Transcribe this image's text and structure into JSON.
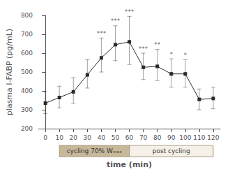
{
  "chart_data": {
    "type": "line",
    "xlabel": "time (min)",
    "ylabel": "plasma I-FABP (pg/mL)",
    "x": [
      0,
      10,
      20,
      30,
      40,
      50,
      60,
      70,
      80,
      90,
      100,
      110,
      120
    ],
    "values": [
      335,
      365,
      395,
      485,
      575,
      645,
      660,
      525,
      530,
      490,
      490,
      355,
      360
    ],
    "yerr_low": [
      55,
      55,
      60,
      70,
      75,
      85,
      120,
      65,
      75,
      70,
      70,
      55,
      55
    ],
    "yerr_high": [
      60,
      60,
      75,
      80,
      105,
      100,
      135,
      75,
      90,
      80,
      75,
      55,
      60
    ],
    "color": "#2a2a2a",
    "marker": "square",
    "annotations": [
      {
        "x": 40,
        "text": "***"
      },
      {
        "x": 50,
        "text": "***"
      },
      {
        "x": 60,
        "text": "***"
      },
      {
        "x": 70,
        "text": "***"
      },
      {
        "x": 80,
        "text": "**"
      },
      {
        "x": 90,
        "text": "*"
      },
      {
        "x": 100,
        "text": "*"
      }
    ],
    "phases": [
      {
        "label": "cycling 70% Wₘₐₓ",
        "start": 10,
        "end": 60,
        "color": "#c8b89a"
      },
      {
        "label": "post cycling",
        "start": 60,
        "end": 120,
        "color": "#f5f0e8"
      }
    ],
    "xlim": [
      -5,
      125
    ],
    "xticks": [
      0,
      10,
      20,
      30,
      40,
      50,
      60,
      70,
      80,
      90,
      100,
      110,
      120
    ],
    "ylim": [
      200,
      800
    ],
    "yticks": [
      200,
      300,
      400,
      500,
      600,
      700,
      800
    ],
    "grid": false
  }
}
